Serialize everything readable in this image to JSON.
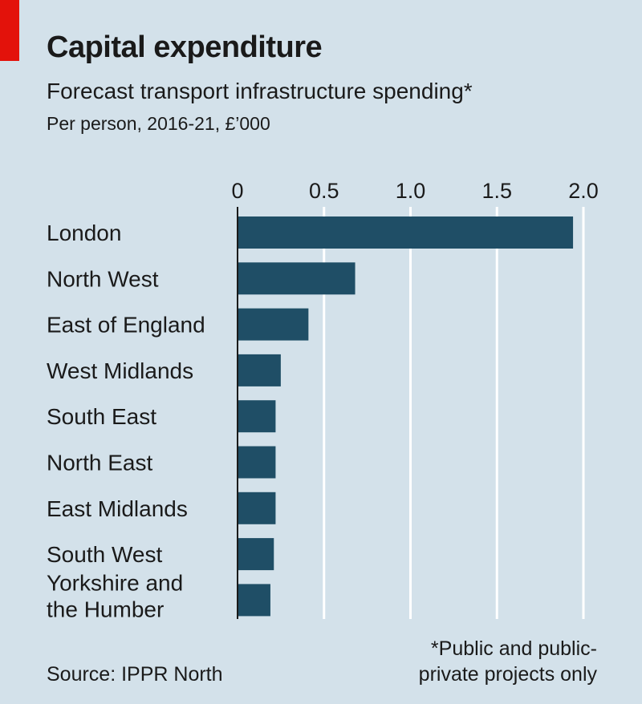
{
  "header": {
    "title": "Capital expenditure",
    "subtitle": "Forecast transport infrastructure spending*",
    "unit": "Per person, 2016-21, £’000"
  },
  "footer": {
    "source": "Source: IPPR North",
    "footnote": "*Public and public-private projects only"
  },
  "colors": {
    "background": "#d3e1ea",
    "bar": "#1f4e66",
    "grid": "#ffffff",
    "accent": "#e3120b"
  },
  "chart_data": {
    "type": "bar",
    "orientation": "horizontal",
    "categories": [
      "London",
      "North West",
      "East of England",
      "West Midlands",
      "South East",
      "North East",
      "East Midlands",
      "South West",
      "Yorkshire and the Humber"
    ],
    "values": [
      1.94,
      0.68,
      0.41,
      0.25,
      0.22,
      0.22,
      0.22,
      0.21,
      0.19
    ],
    "xticks": [
      "0",
      "0.5",
      "1.0",
      "1.5",
      "2.0"
    ],
    "xlim": [
      0,
      2.0
    ],
    "grid": true,
    "title": "Capital expenditure",
    "xlabel": "",
    "ylabel": ""
  }
}
